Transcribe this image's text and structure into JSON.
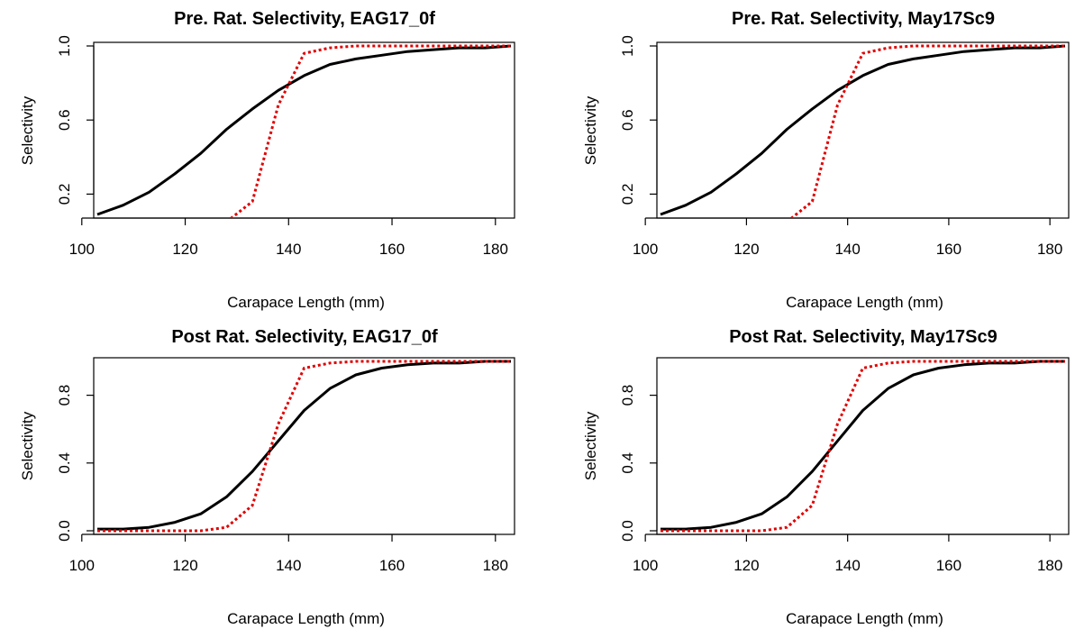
{
  "colors": {
    "solid": "#000000",
    "dotted": "#e00000",
    "background": "#ffffff"
  },
  "chart_data": [
    {
      "type": "line",
      "title": "Pre. Rat. Selectivity, EAG17_0f",
      "xlabel": "Carapace Length (mm)",
      "ylabel": "Selectivity",
      "xlim": [
        103,
        183
      ],
      "ylim": [
        0.09,
        1.0
      ],
      "xticks": [
        "100",
        "120",
        "140",
        "160",
        "180"
      ],
      "yticks": [
        "0.2",
        "0.6",
        "1.0"
      ],
      "x": [
        103,
        108,
        113,
        118,
        123,
        128,
        133,
        138,
        143,
        148,
        153,
        158,
        163,
        168,
        173,
        178,
        183
      ],
      "series": [
        {
          "style": "solid",
          "values": [
            0.09,
            0.14,
            0.21,
            0.31,
            0.42,
            0.55,
            0.66,
            0.76,
            0.84,
            0.9,
            0.93,
            0.95,
            0.97,
            0.98,
            0.99,
            0.99,
            1.0
          ]
        },
        {
          "style": "dotted",
          "values": [
            null,
            null,
            null,
            null,
            null,
            0.05,
            0.16,
            0.68,
            0.96,
            0.99,
            1.0,
            1.0,
            1.0,
            1.0,
            1.0,
            1.0,
            1.0
          ]
        }
      ]
    },
    {
      "type": "line",
      "title": "Pre. Rat. Selectivity, May17Sc9",
      "xlabel": "Carapace Length (mm)",
      "ylabel": "Selectivity",
      "xlim": [
        103,
        183
      ],
      "ylim": [
        0.09,
        1.0
      ],
      "xticks": [
        "100",
        "120",
        "140",
        "160",
        "180"
      ],
      "yticks": [
        "0.2",
        "0.6",
        "1.0"
      ],
      "x": [
        103,
        108,
        113,
        118,
        123,
        128,
        133,
        138,
        143,
        148,
        153,
        158,
        163,
        168,
        173,
        178,
        183
      ],
      "series": [
        {
          "style": "solid",
          "values": [
            0.09,
            0.14,
            0.21,
            0.31,
            0.42,
            0.55,
            0.66,
            0.76,
            0.84,
            0.9,
            0.93,
            0.95,
            0.97,
            0.98,
            0.99,
            0.99,
            1.0
          ]
        },
        {
          "style": "dotted",
          "values": [
            null,
            null,
            null,
            null,
            null,
            0.05,
            0.16,
            0.68,
            0.96,
            0.99,
            1.0,
            1.0,
            1.0,
            1.0,
            1.0,
            1.0,
            1.0
          ]
        }
      ]
    },
    {
      "type": "line",
      "title": "Post Rat. Selectivity, EAG17_0f",
      "xlabel": "Carapace Length (mm)",
      "ylabel": "Selectivity",
      "xlim": [
        103,
        183
      ],
      "ylim": [
        0.0,
        1.0
      ],
      "xticks": [
        "100",
        "120",
        "140",
        "160",
        "180"
      ],
      "yticks": [
        "0.0",
        "0.4",
        "0.8"
      ],
      "x": [
        103,
        108,
        113,
        118,
        123,
        128,
        133,
        138,
        143,
        148,
        153,
        158,
        163,
        168,
        173,
        178,
        183
      ],
      "series": [
        {
          "style": "solid",
          "values": [
            0.01,
            0.01,
            0.02,
            0.05,
            0.1,
            0.2,
            0.35,
            0.53,
            0.71,
            0.84,
            0.92,
            0.96,
            0.98,
            0.99,
            0.99,
            1.0,
            1.0
          ]
        },
        {
          "style": "dotted",
          "values": [
            0.0,
            0.0,
            0.0,
            0.0,
            0.0,
            0.02,
            0.15,
            0.63,
            0.96,
            0.99,
            1.0,
            1.0,
            1.0,
            1.0,
            1.0,
            1.0,
            1.0
          ]
        }
      ]
    },
    {
      "type": "line",
      "title": "Post Rat. Selectivity, May17Sc9",
      "xlabel": "Carapace Length (mm)",
      "ylabel": "Selectivity",
      "xlim": [
        103,
        183
      ],
      "ylim": [
        0.0,
        1.0
      ],
      "xticks": [
        "100",
        "120",
        "140",
        "160",
        "180"
      ],
      "yticks": [
        "0.0",
        "0.4",
        "0.8"
      ],
      "x": [
        103,
        108,
        113,
        118,
        123,
        128,
        133,
        138,
        143,
        148,
        153,
        158,
        163,
        168,
        173,
        178,
        183
      ],
      "series": [
        {
          "style": "solid",
          "values": [
            0.01,
            0.01,
            0.02,
            0.05,
            0.1,
            0.2,
            0.35,
            0.53,
            0.71,
            0.84,
            0.92,
            0.96,
            0.98,
            0.99,
            0.99,
            1.0,
            1.0
          ]
        },
        {
          "style": "dotted",
          "values": [
            0.0,
            0.0,
            0.0,
            0.0,
            0.0,
            0.02,
            0.15,
            0.63,
            0.96,
            0.99,
            1.0,
            1.0,
            1.0,
            1.0,
            1.0,
            1.0,
            1.0
          ]
        }
      ]
    }
  ]
}
